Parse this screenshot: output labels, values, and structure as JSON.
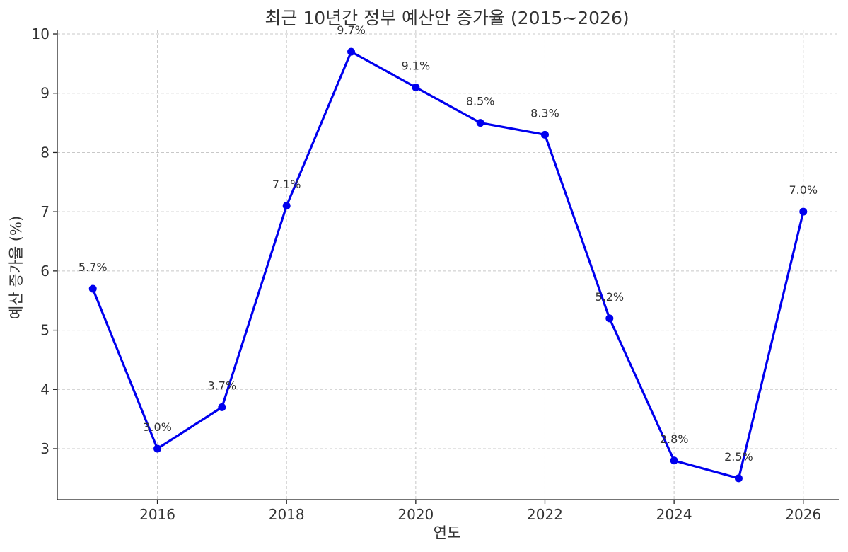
{
  "chart_data": {
    "type": "line",
    "title": "최근 10년간 정부 예산안 증가율 (2015~2026)",
    "xlabel": "연도",
    "ylabel": "예산 증가율 (%)",
    "x": [
      2015,
      2016,
      2017,
      2018,
      2019,
      2020,
      2021,
      2022,
      2023,
      2024,
      2025,
      2026
    ],
    "series": [
      {
        "values": [
          5.7,
          3.0,
          3.7,
          7.1,
          9.7,
          9.1,
          8.5,
          8.3,
          5.2,
          2.8,
          2.5,
          7.0
        ],
        "color": "#0000ee",
        "marker": "circle"
      }
    ],
    "data_labels": [
      "5.7%",
      "3.0%",
      "3.7%",
      "7.1%",
      "9.7%",
      "9.1%",
      "8.5%",
      "8.3%",
      "5.2%",
      "2.8%",
      "2.5%",
      "7.0%"
    ],
    "xticks": [
      2016,
      2018,
      2020,
      2022,
      2024,
      2026
    ],
    "yticks": [
      3,
      4,
      5,
      6,
      7,
      8,
      9,
      10
    ],
    "xlim": [
      2014.45,
      2026.55
    ],
    "ylim": [
      2.14,
      10.06
    ],
    "grid": true,
    "legend": "none"
  }
}
